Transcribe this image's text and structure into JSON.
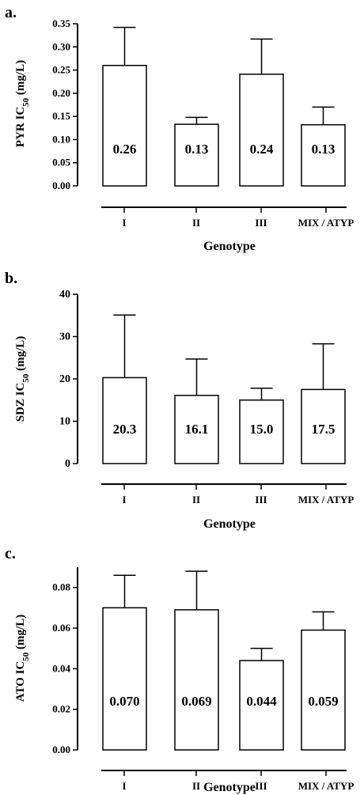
{
  "chart_data": [
    {
      "type": "bar",
      "panel_label": "a.",
      "ylabel_main": "PYR IC",
      "ylabel_sub": "50",
      "ylabel_unit": " (mg/L)",
      "xlabel": "Genotype",
      "categories": [
        "I",
        "II",
        "III",
        "MIX / ATYP"
      ],
      "values": [
        0.26,
        0.133,
        0.241,
        0.132
      ],
      "errors": [
        0.082,
        0.015,
        0.076,
        0.038
      ],
      "value_labels": [
        "0.26",
        "0.13",
        "0.24",
        "0.13"
      ],
      "ylim": [
        0,
        0.35
      ],
      "yticks": [
        0,
        0.05,
        0.1,
        0.15,
        0.2,
        0.25,
        0.3,
        0.35
      ],
      "ytick_labels": [
        "0.00",
        "0.05",
        "0.10",
        "0.15",
        "0.20",
        "0.25",
        "0.30",
        "0.35"
      ]
    },
    {
      "type": "bar",
      "panel_label": "b.",
      "ylabel_main": "SDZ IC",
      "ylabel_sub": "50",
      "ylabel_unit": " (mg/L)",
      "xlabel": "Genotype",
      "categories": [
        "I",
        "II",
        "III",
        "MIX / ATYP"
      ],
      "values": [
        20.3,
        16.1,
        15.0,
        17.5
      ],
      "errors": [
        14.8,
        8.6,
        2.8,
        10.8
      ],
      "value_labels": [
        "20.3",
        "16.1",
        "15.0",
        "17.5"
      ],
      "ylim": [
        0,
        40
      ],
      "yticks": [
        0,
        10,
        20,
        30,
        40
      ],
      "ytick_labels": [
        "0",
        "10",
        "20",
        "30",
        "40"
      ]
    },
    {
      "type": "bar",
      "panel_label": "c.",
      "ylabel_main": "ATO IC",
      "ylabel_sub": "50",
      "ylabel_unit": " (mg/L)",
      "xlabel": "Genotype",
      "categories": [
        "I",
        "II",
        "III",
        "MIX / ATYP"
      ],
      "values": [
        0.07,
        0.069,
        0.044,
        0.059
      ],
      "errors": [
        0.016,
        0.019,
        0.006,
        0.009
      ],
      "value_labels": [
        "0.070",
        "0.069",
        "0.044",
        "0.059"
      ],
      "ylim": [
        0,
        0.09
      ],
      "yticks": [
        0,
        0.02,
        0.04,
        0.06,
        0.08
      ],
      "ytick_labels": [
        "0.00",
        "0.02",
        "0.04",
        "0.06",
        "0.08"
      ]
    }
  ]
}
